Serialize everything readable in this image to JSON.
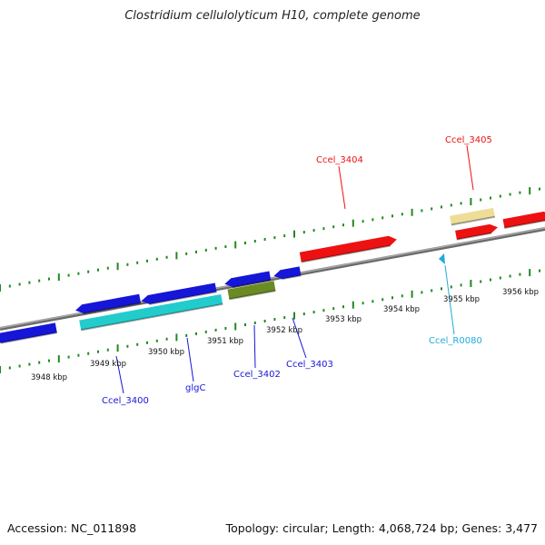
{
  "title": "Clostridium cellulolyticum H10, complete genome",
  "footer": {
    "accession": "Accession: NC_011898",
    "summary": "Topology: circular; Length: 4,068,724 bp; Genes: 3,477"
  },
  "colors": {
    "backbone": "#888888",
    "forward_gene": "#ee1111",
    "reverse_gene": "#1616d8",
    "cds_cyan": "#22cccc",
    "cds_olive": "#6a8a22",
    "cds_khaki": "#eedd99",
    "ruler": "#228822",
    "rna_label": "#22aadd"
  },
  "tick_labels": [
    "3948 kbp",
    "3949 kbp",
    "3950 kbp",
    "3951 kbp",
    "3952 kbp",
    "3953 kbp",
    "3954 kbp",
    "3955 kbp",
    "3956 kbp"
  ],
  "feature_labels": [
    {
      "text": "Ccel_3400",
      "color": "#1616d8"
    },
    {
      "text": "glgC",
      "color": "#1616d8"
    },
    {
      "text": "Ccel_3402",
      "color": "#1616d8"
    },
    {
      "text": "Ccel_3403",
      "color": "#1616d8"
    },
    {
      "text": "Ccel_3404",
      "color": "#ee1111"
    },
    {
      "text": "Ccel_3405",
      "color": "#ee1111"
    },
    {
      "text": "Ccel_R0080",
      "color": "#22aadd"
    }
  ]
}
